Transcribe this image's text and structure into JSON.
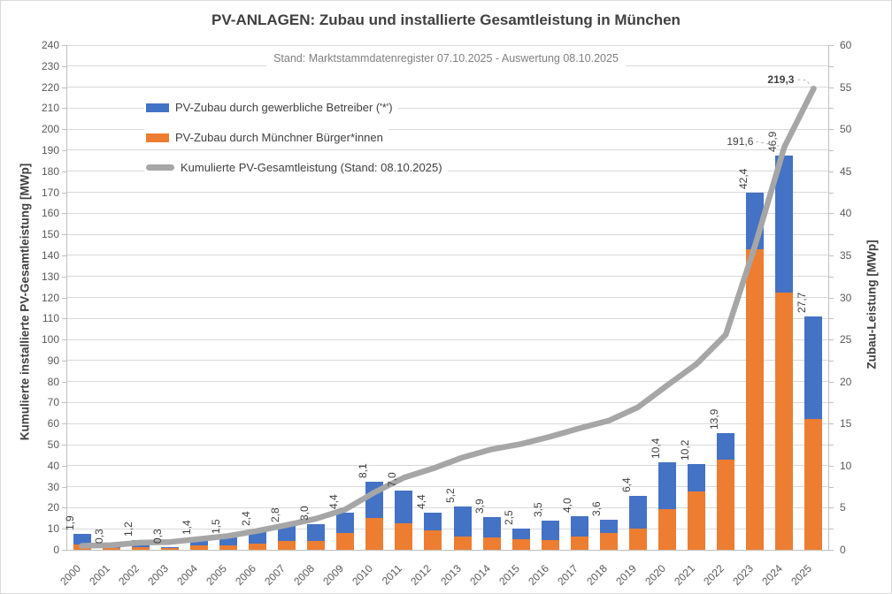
{
  "header": {
    "title": "PV-ANLAGEN: Zubau und installierte Gesamtleistung in München",
    "subtitle": "Stand: Marktstammdatenregister 07.10.2025 - Auswertung 08.10.2025"
  },
  "legend": {
    "items": [
      {
        "label": "PV-Zubau durch gewerbliche Betreiber ('*')",
        "color": "#4472C4",
        "swatch": "bar"
      },
      {
        "label": "PV-Zubau durch Münchner Bürger*innen",
        "color": "#ED7D31",
        "swatch": "bar"
      },
      {
        "label": "Kumulierte PV-Gesamtleistung (Stand: 08.10.2025)",
        "color": "#A6A6A6",
        "swatch": "line"
      }
    ]
  },
  "chart_data": {
    "type": "bar",
    "subtype": "stacked-bars-with-cumulative-line",
    "categories": [
      "2000",
      "2001",
      "2002",
      "2003",
      "2004",
      "2005",
      "2006",
      "2007",
      "2008",
      "2009",
      "2010",
      "2011",
      "2012",
      "2013",
      "2014",
      "2015",
      "2016",
      "2017",
      "2018",
      "2019",
      "2020",
      "2021",
      "2022",
      "2023",
      "2024",
      "2025"
    ],
    "series": [
      {
        "name": "PV-Zubau durch Münchner Bürger*innen",
        "render": "bar",
        "stack_order": 0,
        "color": "#ED7D31",
        "axis": "right",
        "values": [
          0.6,
          0.2,
          0.3,
          0.2,
          0.5,
          0.5,
          0.7,
          1.0,
          1.1,
          2.0,
          3.8,
          3.2,
          2.3,
          1.6,
          1.5,
          1.3,
          1.2,
          1.6,
          2.0,
          2.5,
          4.8,
          6.9,
          10.7,
          35.7,
          30.6,
          15.6
        ]
      },
      {
        "name": "PV-Zubau durch gewerbliche Betreiber ('*')",
        "render": "bar",
        "stack_order": 1,
        "color": "#4472C4",
        "axis": "right",
        "values": [
          1.3,
          0.1,
          0.9,
          0.1,
          0.9,
          1.0,
          1.7,
          1.8,
          1.9,
          2.4,
          4.3,
          3.8,
          2.1,
          3.6,
          2.4,
          1.2,
          2.3,
          2.4,
          1.6,
          3.9,
          5.6,
          3.3,
          3.2,
          6.7,
          16.3,
          12.1
        ]
      },
      {
        "name": "Kumulierte PV-Gesamtleistung (Stand: 08.10.2025)",
        "render": "line",
        "color": "#A6A6A6",
        "axis": "left",
        "values": [
          1.9,
          2.2,
          3.4,
          3.7,
          5.1,
          6.6,
          9.0,
          11.8,
          14.8,
          19.2,
          27.3,
          34.3,
          38.7,
          43.9,
          47.8,
          50.3,
          53.8,
          57.8,
          61.4,
          67.8,
          78.2,
          88.4,
          102.3,
          144.7,
          191.6,
          219.3
        ]
      }
    ],
    "bar_total_labels": [
      "1,9",
      "0,3",
      "1,2",
      "0,3",
      "1,4",
      "1,5",
      "2,4",
      "2,8",
      "3,0",
      "4,4",
      "8,1",
      "7,0",
      "4,4",
      "5,2",
      "3,9",
      "2,5",
      "3,5",
      "4,0",
      "3,6",
      "6,4",
      "10,4",
      "10,2",
      "13,9",
      "42,4",
      "46,9",
      "27,7"
    ],
    "line_callouts": [
      {
        "category": "2024",
        "index": 24,
        "label": "191,6",
        "bold": false
      },
      {
        "category": "2025",
        "index": 25,
        "label": "219,3",
        "bold": true
      }
    ],
    "left_axis": {
      "title": "Kumulierte installierte PV-Gesamtleistung [MWp]",
      "min": 0,
      "max": 240,
      "label_step": 10,
      "tick_labels": [
        0,
        10,
        20,
        30,
        40,
        50,
        60,
        70,
        80,
        90,
        100,
        110,
        120,
        130,
        140,
        150,
        160,
        170,
        180,
        190,
        200,
        210,
        220,
        230,
        240
      ]
    },
    "right_axis": {
      "title": "Zubau-Leistung [MWp]",
      "min": 0,
      "max": 60,
      "label_step": 5,
      "minor_tick_step": 2.5,
      "tick_labels": [
        0,
        5,
        10,
        15,
        20,
        25,
        30,
        35,
        40,
        45,
        50,
        55,
        60
      ]
    },
    "grid": true,
    "legend_position": "inside-top-left"
  },
  "colors": {
    "bar_blue": "#4472C4",
    "bar_orange": "#ED7D31",
    "line_gray": "#A6A6A6",
    "gridline": "#D9D9D9",
    "axis_line": "#BFBFBF",
    "tick_text": "#595959",
    "dark_text": "#404040",
    "subtitle_text": "#7F7F7F"
  }
}
